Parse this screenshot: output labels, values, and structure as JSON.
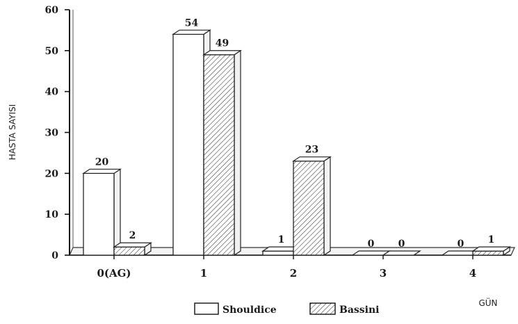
{
  "chart_data": {
    "type": "bar",
    "title": "",
    "xlabel": "GÜN",
    "ylabel": "HASTA SAYISI",
    "categories": [
      "0(AG)",
      "1",
      "2",
      "3",
      "4"
    ],
    "series": [
      {
        "name": "Shouldice",
        "values": [
          20,
          54,
          1,
          0,
          0
        ],
        "pattern": "plain"
      },
      {
        "name": "Bassini",
        "values": [
          2,
          49,
          23,
          0,
          1
        ],
        "pattern": "hatched"
      }
    ],
    "ylim": [
      0,
      60
    ],
    "yticks": [
      "0",
      "10",
      "20",
      "30",
      "40",
      "50",
      "60"
    ],
    "value_labels": [
      [
        "20",
        "54",
        "1",
        "0",
        "0"
      ],
      [
        "2",
        "49",
        "23",
        "0",
        "1"
      ]
    ],
    "grid": false,
    "legend_position": "bottom"
  }
}
